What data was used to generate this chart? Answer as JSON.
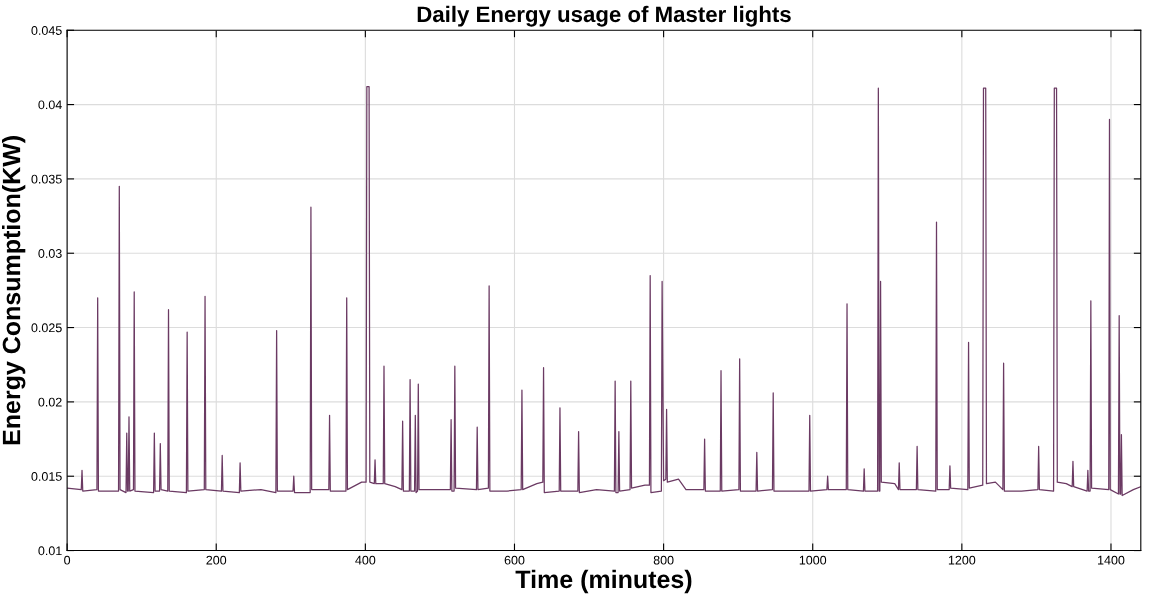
{
  "chart_data": {
    "type": "line",
    "title": "Daily Energy usage of Master lights",
    "xlabel": "Time (minutes)",
    "ylabel": "Energy Consumption(KW)",
    "xlim": [
      0,
      1440
    ],
    "xticks": [
      0,
      200,
      400,
      600,
      800,
      1000,
      1200,
      1400
    ],
    "ylim": [
      0.01,
      0.045
    ],
    "yticks": [
      0.01,
      0.015,
      0.02,
      0.025,
      0.03,
      0.035,
      0.04,
      0.045
    ],
    "grid": true,
    "marker": "none",
    "line_style": "solid",
    "series": [
      {
        "color": "#6b3a63",
        "x": [
          0,
          19,
          20,
          21,
          40,
          41,
          42,
          69,
          70,
          71,
          79,
          80,
          81,
          82,
          83,
          84,
          89,
          90,
          91,
          116,
          117,
          118,
          124,
          125,
          126,
          135,
          136,
          137,
          160,
          161,
          162,
          184,
          185,
          186,
          207,
          208,
          209,
          231,
          232,
          233,
          260,
          280,
          281,
          282,
          303,
          304,
          305,
          326,
          327,
          328,
          351,
          352,
          353,
          374,
          375,
          376,
          395,
          401,
          402,
          405,
          406,
          412,
          413,
          414,
          424,
          425,
          426,
          440,
          449,
          450,
          451,
          459,
          460,
          461,
          466,
          467,
          468,
          470,
          471,
          472,
          490,
          514,
          515,
          516,
          519,
          520,
          521,
          549,
          550,
          551,
          565,
          566,
          567,
          590,
          609,
          610,
          611,
          630,
          638,
          639,
          640,
          660,
          661,
          662,
          685,
          686,
          687,
          710,
          734,
          735,
          736,
          739,
          740,
          741,
          755,
          756,
          757,
          775,
          781,
          782,
          783,
          797,
          798,
          800,
          803,
          804,
          805,
          820,
          830,
          854,
          855,
          856,
          876,
          877,
          878,
          901,
          902,
          903,
          924,
          925,
          926,
          946,
          947,
          948,
          970,
          995,
          996,
          997,
          1019,
          1020,
          1021,
          1045,
          1046,
          1047,
          1068,
          1069,
          1070,
          1087,
          1088,
          1089,
          1090,
          1091,
          1092,
          1110,
          1115,
          1116,
          1117,
          1139,
          1140,
          1141,
          1165,
          1166,
          1167,
          1183,
          1184,
          1185,
          1208,
          1209,
          1210,
          1228,
          1229,
          1232,
          1233,
          1245,
          1255,
          1256,
          1257,
          1280,
          1302,
          1303,
          1304,
          1323,
          1324,
          1327,
          1328,
          1340,
          1348,
          1349,
          1350,
          1368,
          1369,
          1370,
          1372,
          1373,
          1374,
          1397,
          1398,
          1399,
          1410,
          1411,
          1412,
          1413,
          1414,
          1415,
          1430,
          1440
        ],
        "values": [
          0.0142,
          0.0141,
          0.0154,
          0.014,
          0.0141,
          0.027,
          0.014,
          0.014,
          0.0345,
          0.0141,
          0.0139,
          0.0179,
          0.014,
          0.014,
          0.019,
          0.014,
          0.0141,
          0.0274,
          0.014,
          0.0139,
          0.0179,
          0.014,
          0.014,
          0.0172,
          0.0141,
          0.014,
          0.0262,
          0.014,
          0.0139,
          0.0247,
          0.014,
          0.0141,
          0.0271,
          0.0141,
          0.014,
          0.0164,
          0.014,
          0.0139,
          0.0159,
          0.014,
          0.0141,
          0.0139,
          0.0248,
          0.014,
          0.014,
          0.015,
          0.0139,
          0.0139,
          0.0331,
          0.0141,
          0.0141,
          0.0191,
          0.014,
          0.014,
          0.027,
          0.0141,
          0.0146,
          0.0146,
          0.0412,
          0.0412,
          0.0146,
          0.0145,
          0.0161,
          0.0145,
          0.0145,
          0.0224,
          0.0145,
          0.0143,
          0.0141,
          0.0187,
          0.014,
          0.014,
          0.0215,
          0.014,
          0.014,
          0.0191,
          0.0139,
          0.014,
          0.0212,
          0.0141,
          0.0141,
          0.0141,
          0.0188,
          0.014,
          0.014,
          0.0224,
          0.0142,
          0.0141,
          0.0183,
          0.0141,
          0.0142,
          0.0278,
          0.014,
          0.014,
          0.0141,
          0.0208,
          0.0141,
          0.0145,
          0.0146,
          0.0223,
          0.0139,
          0.014,
          0.0196,
          0.014,
          0.014,
          0.018,
          0.0139,
          0.0141,
          0.014,
          0.0214,
          0.0139,
          0.0139,
          0.018,
          0.014,
          0.0141,
          0.0214,
          0.0142,
          0.0144,
          0.0144,
          0.0285,
          0.0139,
          0.014,
          0.0281,
          0.0147,
          0.0148,
          0.0195,
          0.0146,
          0.0148,
          0.0141,
          0.0141,
          0.0175,
          0.014,
          0.014,
          0.0221,
          0.014,
          0.0141,
          0.0229,
          0.014,
          0.014,
          0.0166,
          0.014,
          0.0141,
          0.0206,
          0.014,
          0.014,
          0.014,
          0.0191,
          0.014,
          0.0141,
          0.015,
          0.0141,
          0.0141,
          0.0266,
          0.0141,
          0.014,
          0.0155,
          0.014,
          0.014,
          0.0411,
          0.014,
          0.014,
          0.0281,
          0.0146,
          0.0145,
          0.0141,
          0.0159,
          0.0141,
          0.0141,
          0.017,
          0.0141,
          0.014,
          0.0321,
          0.0141,
          0.0141,
          0.0157,
          0.0142,
          0.0141,
          0.024,
          0.0142,
          0.0144,
          0.0411,
          0.0411,
          0.0145,
          0.0146,
          0.0141,
          0.0226,
          0.014,
          0.014,
          0.0141,
          0.017,
          0.0141,
          0.014,
          0.0411,
          0.0411,
          0.0146,
          0.0145,
          0.0143,
          0.016,
          0.0143,
          0.014,
          0.0154,
          0.014,
          0.014,
          0.0268,
          0.0142,
          0.0141,
          0.039,
          0.0141,
          0.0138,
          0.0258,
          0.0138,
          0.0138,
          0.0178,
          0.0137,
          0.0141,
          0.0143
        ]
      }
    ]
  }
}
